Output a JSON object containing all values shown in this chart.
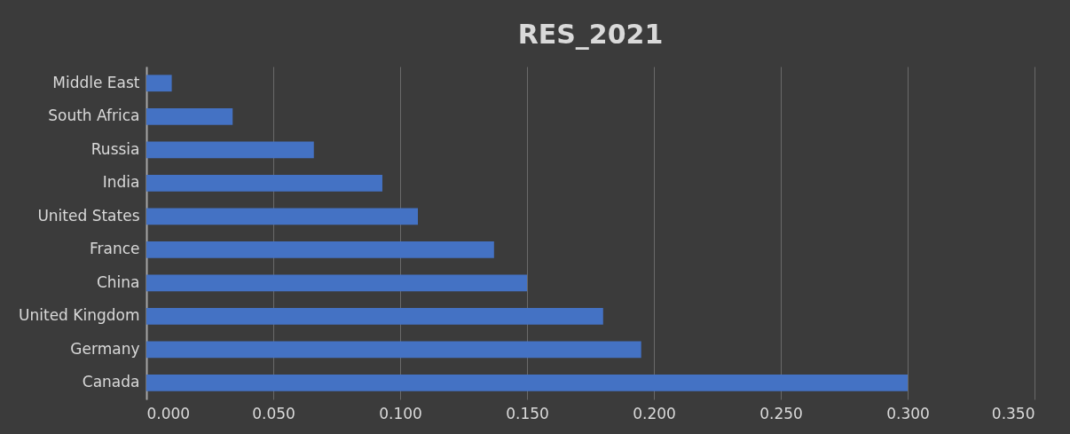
{
  "chart_data": {
    "type": "bar",
    "orientation": "horizontal",
    "title": "RES_2021",
    "categories": [
      "Middle East",
      "South Africa",
      "Russia",
      "India",
      "United States",
      "France",
      "China",
      "United Kingdom",
      "Germany",
      "Canada"
    ],
    "values": [
      0.01,
      0.034,
      0.066,
      0.093,
      0.107,
      0.137,
      0.15,
      0.18,
      0.195,
      0.3
    ],
    "color": "#4472c4",
    "xlim": [
      0,
      0.35
    ],
    "xticks": [
      {
        "value": 0,
        "label": "0.000"
      },
      {
        "value": 0.05,
        "label": "0.050"
      },
      {
        "value": 0.1,
        "label": "0.100"
      },
      {
        "value": 0.15,
        "label": "0.150"
      },
      {
        "value": 0.2,
        "label": "0.200"
      },
      {
        "value": 0.25,
        "label": "0.250"
      },
      {
        "value": 0.3,
        "label": "0.300"
      },
      {
        "value": 0.35,
        "label": "0.350"
      }
    ],
    "grid": "x"
  }
}
